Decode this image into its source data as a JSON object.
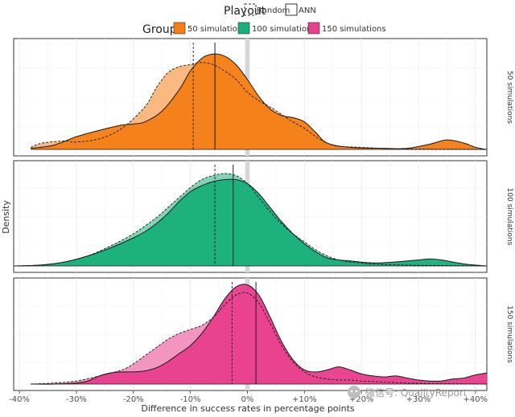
{
  "chart_data": {
    "type": "density-ridgeline",
    "legend": {
      "playout_title": "Playout",
      "playout_items": [
        {
          "label": "Random",
          "linestyle": "dashed"
        },
        {
          "label": "ANN",
          "linestyle": "solid"
        }
      ],
      "group_title": "Group",
      "group_items": [
        {
          "label": "50 simulations",
          "color": "#f57f17"
        },
        {
          "label": "100 simulations",
          "color": "#1aaf7b"
        },
        {
          "label": "150 simulations",
          "color": "#e8408d"
        }
      ]
    },
    "xlabel": "Difference in success rates in percentage points",
    "ylabel": "Density",
    "xlim": [
      -41,
      42
    ],
    "xticks": [
      -40,
      -30,
      -20,
      -10,
      0,
      10,
      20,
      30,
      40
    ],
    "xtick_labels": [
      "-40%",
      "-30%",
      "-20%",
      "-10%",
      "0%",
      "+10%",
      "+20%",
      "+30%",
      "+40%"
    ],
    "zero_band": [
      -0.4,
      0.4
    ],
    "panels": [
      {
        "label": "50 simulations",
        "color": "#f57f17",
        "mean_random": -9.5,
        "mean_ann": -5.7,
        "random_density": [
          [
            -38,
            0.02
          ],
          [
            -36,
            0.06
          ],
          [
            -32,
            0.08
          ],
          [
            -30,
            0.07
          ],
          [
            -26,
            0.1
          ],
          [
            -22,
            0.2
          ],
          [
            -18,
            0.4
          ],
          [
            -16,
            0.58
          ],
          [
            -14,
            0.72
          ],
          [
            -12,
            0.78
          ],
          [
            -10,
            0.8
          ],
          [
            -8,
            0.82
          ],
          [
            -6,
            0.8
          ],
          [
            -4,
            0.74
          ],
          [
            -2,
            0.66
          ],
          [
            0,
            0.54
          ],
          [
            2,
            0.46
          ],
          [
            4,
            0.4
          ],
          [
            6,
            0.33
          ],
          [
            8,
            0.26
          ],
          [
            10,
            0.2
          ],
          [
            12,
            0.12
          ],
          [
            14,
            0.06
          ],
          [
            16,
            0.03
          ],
          [
            20,
            0.02
          ],
          [
            24,
            0.01
          ],
          [
            30,
            0.004
          ],
          [
            36,
            0.002
          ],
          [
            42,
            0.0
          ]
        ],
        "ann_density": [
          [
            -38,
            0.01
          ],
          [
            -34,
            0.04
          ],
          [
            -30,
            0.12
          ],
          [
            -26,
            0.18
          ],
          [
            -22,
            0.23
          ],
          [
            -20,
            0.24
          ],
          [
            -18,
            0.26
          ],
          [
            -15,
            0.36
          ],
          [
            -12,
            0.56
          ],
          [
            -10,
            0.74
          ],
          [
            -8,
            0.86
          ],
          [
            -6,
            0.9
          ],
          [
            -4,
            0.88
          ],
          [
            -2,
            0.8
          ],
          [
            0,
            0.66
          ],
          [
            2,
            0.5
          ],
          [
            4,
            0.38
          ],
          [
            6,
            0.32
          ],
          [
            8,
            0.3
          ],
          [
            10,
            0.26
          ],
          [
            12,
            0.16
          ],
          [
            14,
            0.06
          ],
          [
            18,
            0.02
          ],
          [
            24,
            0.01
          ],
          [
            28,
            0.01
          ],
          [
            32,
            0.05
          ],
          [
            35,
            0.09
          ],
          [
            38,
            0.06
          ],
          [
            40,
            0.02
          ],
          [
            42,
            0.0
          ]
        ]
      },
      {
        "label": "100 simulations",
        "color": "#1aaf7b",
        "mean_random": -5.7,
        "mean_ann": -2.5,
        "random_density": [
          [
            -41,
            0.0
          ],
          [
            -36,
            0.01
          ],
          [
            -32,
            0.04
          ],
          [
            -28,
            0.1
          ],
          [
            -24,
            0.2
          ],
          [
            -20,
            0.32
          ],
          [
            -16,
            0.48
          ],
          [
            -14,
            0.58
          ],
          [
            -12,
            0.68
          ],
          [
            -10,
            0.78
          ],
          [
            -8,
            0.86
          ],
          [
            -6,
            0.9
          ],
          [
            -4,
            0.92
          ],
          [
            -2,
            0.9
          ],
          [
            0,
            0.82
          ],
          [
            2,
            0.68
          ],
          [
            4,
            0.54
          ],
          [
            6,
            0.42
          ],
          [
            8,
            0.32
          ],
          [
            10,
            0.24
          ],
          [
            12,
            0.16
          ],
          [
            14,
            0.1
          ],
          [
            16,
            0.06
          ],
          [
            18,
            0.04
          ],
          [
            22,
            0.02
          ],
          [
            28,
            0.008
          ],
          [
            34,
            0.004
          ],
          [
            42,
            0.0
          ]
        ],
        "ann_density": [
          [
            -41,
            0.0
          ],
          [
            -36,
            0.01
          ],
          [
            -32,
            0.04
          ],
          [
            -28,
            0.1
          ],
          [
            -24,
            0.18
          ],
          [
            -20,
            0.28
          ],
          [
            -18,
            0.34
          ],
          [
            -16,
            0.42
          ],
          [
            -14,
            0.52
          ],
          [
            -12,
            0.64
          ],
          [
            -10,
            0.74
          ],
          [
            -8,
            0.8
          ],
          [
            -6,
            0.84
          ],
          [
            -4,
            0.86
          ],
          [
            -2,
            0.86
          ],
          [
            0,
            0.82
          ],
          [
            2,
            0.72
          ],
          [
            4,
            0.58
          ],
          [
            6,
            0.44
          ],
          [
            8,
            0.32
          ],
          [
            10,
            0.22
          ],
          [
            12,
            0.14
          ],
          [
            14,
            0.08
          ],
          [
            16,
            0.06
          ],
          [
            18,
            0.05
          ],
          [
            22,
            0.03
          ],
          [
            26,
            0.04
          ],
          [
            30,
            0.06
          ],
          [
            32,
            0.07
          ],
          [
            34,
            0.06
          ],
          [
            38,
            0.02
          ],
          [
            42,
            0.0
          ]
        ]
      },
      {
        "label": "150 simulations",
        "color": "#e8408d",
        "mean_random": -2.7,
        "mean_ann": 1.5,
        "random_density": [
          [
            -38,
            0.0
          ],
          [
            -34,
            0.01
          ],
          [
            -30,
            0.03
          ],
          [
            -26,
            0.08
          ],
          [
            -22,
            0.14
          ],
          [
            -20,
            0.2
          ],
          [
            -18,
            0.28
          ],
          [
            -16,
            0.36
          ],
          [
            -14,
            0.44
          ],
          [
            -12,
            0.5
          ],
          [
            -10,
            0.54
          ],
          [
            -8,
            0.58
          ],
          [
            -6,
            0.66
          ],
          [
            -4,
            0.78
          ],
          [
            -2,
            0.88
          ],
          [
            0,
            0.9
          ],
          [
            2,
            0.8
          ],
          [
            4,
            0.6
          ],
          [
            6,
            0.38
          ],
          [
            8,
            0.22
          ],
          [
            10,
            0.12
          ],
          [
            12,
            0.07
          ],
          [
            14,
            0.05
          ],
          [
            16,
            0.04
          ],
          [
            18,
            0.04
          ],
          [
            20,
            0.03
          ],
          [
            24,
            0.02
          ],
          [
            28,
            0.01
          ],
          [
            34,
            0.004
          ],
          [
            42,
            0.0
          ]
        ],
        "ann_density": [
          [
            -38,
            0.0
          ],
          [
            -34,
            0.0
          ],
          [
            -30,
            0.01
          ],
          [
            -28,
            0.03
          ],
          [
            -26,
            0.08
          ],
          [
            -24,
            0.11
          ],
          [
            -22,
            0.12
          ],
          [
            -20,
            0.12
          ],
          [
            -18,
            0.13
          ],
          [
            -16,
            0.16
          ],
          [
            -14,
            0.22
          ],
          [
            -12,
            0.3
          ],
          [
            -10,
            0.38
          ],
          [
            -8,
            0.5
          ],
          [
            -6,
            0.66
          ],
          [
            -4,
            0.84
          ],
          [
            -2,
            0.96
          ],
          [
            0,
            0.98
          ],
          [
            2,
            0.88
          ],
          [
            4,
            0.66
          ],
          [
            6,
            0.42
          ],
          [
            8,
            0.24
          ],
          [
            10,
            0.14
          ],
          [
            12,
            0.12
          ],
          [
            14,
            0.14
          ],
          [
            16,
            0.17
          ],
          [
            18,
            0.14
          ],
          [
            20,
            0.1
          ],
          [
            22,
            0.08
          ],
          [
            24,
            0.07
          ],
          [
            26,
            0.08
          ],
          [
            28,
            0.06
          ],
          [
            30,
            0.04
          ],
          [
            32,
            0.03
          ],
          [
            34,
            0.03
          ],
          [
            36,
            0.05
          ],
          [
            38,
            0.06
          ],
          [
            40,
            0.09
          ],
          [
            42,
            0.11
          ]
        ]
      }
    ]
  },
  "watermark": "微信号: QualityReport"
}
